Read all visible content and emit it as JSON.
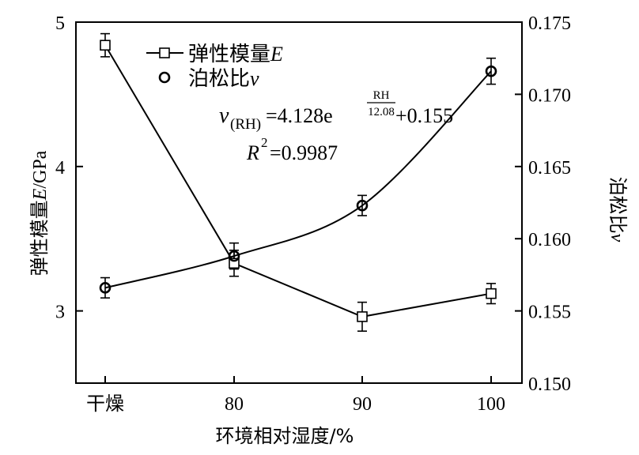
{
  "chart_data": {
    "type": "line",
    "categories": [
      "干燥",
      "80",
      "90",
      "100"
    ],
    "xlabel": "环境相对湿度/%",
    "left_axis": {
      "label_prefix": "弹性模量",
      "label_var": "E",
      "label_suffix": "/GPa",
      "ylim": [
        2.5,
        5.0
      ],
      "ticks": [
        "3",
        "4",
        "5"
      ],
      "tick_values": [
        3,
        4,
        5
      ]
    },
    "right_axis": {
      "label_prefix": "泊松比",
      "label_var": "ν",
      "ylim": [
        0.15,
        0.175
      ],
      "ticks": [
        "0.150",
        "0.155",
        "0.160",
        "0.165",
        "0.170",
        "0.175"
      ],
      "tick_values": [
        0.15,
        0.155,
        0.16,
        0.165,
        0.17,
        0.175
      ]
    },
    "series": [
      {
        "name_prefix": "弹性模量",
        "name_var": "E",
        "axis": "left",
        "marker": "square",
        "connect": "straight",
        "values": [
          4.84,
          3.33,
          2.96,
          3.12
        ],
        "errors": [
          0.08,
          0.09,
          0.1,
          0.07
        ]
      },
      {
        "name_prefix": "泊松比",
        "name_var": "ν",
        "axis": "right",
        "marker": "circle",
        "connect": "fitted-curve",
        "values": [
          0.1566,
          0.1588,
          0.1623,
          0.1716
        ],
        "errors": [
          0.0007,
          0.0009,
          0.0007,
          0.0009
        ]
      }
    ],
    "annotations": {
      "equation_var": "ν",
      "equation_sub": "(RH)",
      "equation_mid": "=4.128e",
      "equation_exp_num": "RH",
      "equation_exp_den": "12.08",
      "equation_tail": "+0.155",
      "r2_var": "R",
      "r2_sup": "2",
      "r2_value": "=0.9987"
    },
    "legend_placement": "top-left",
    "grid": false
  },
  "colors": {
    "ink": "#000000",
    "background": "#ffffff"
  }
}
